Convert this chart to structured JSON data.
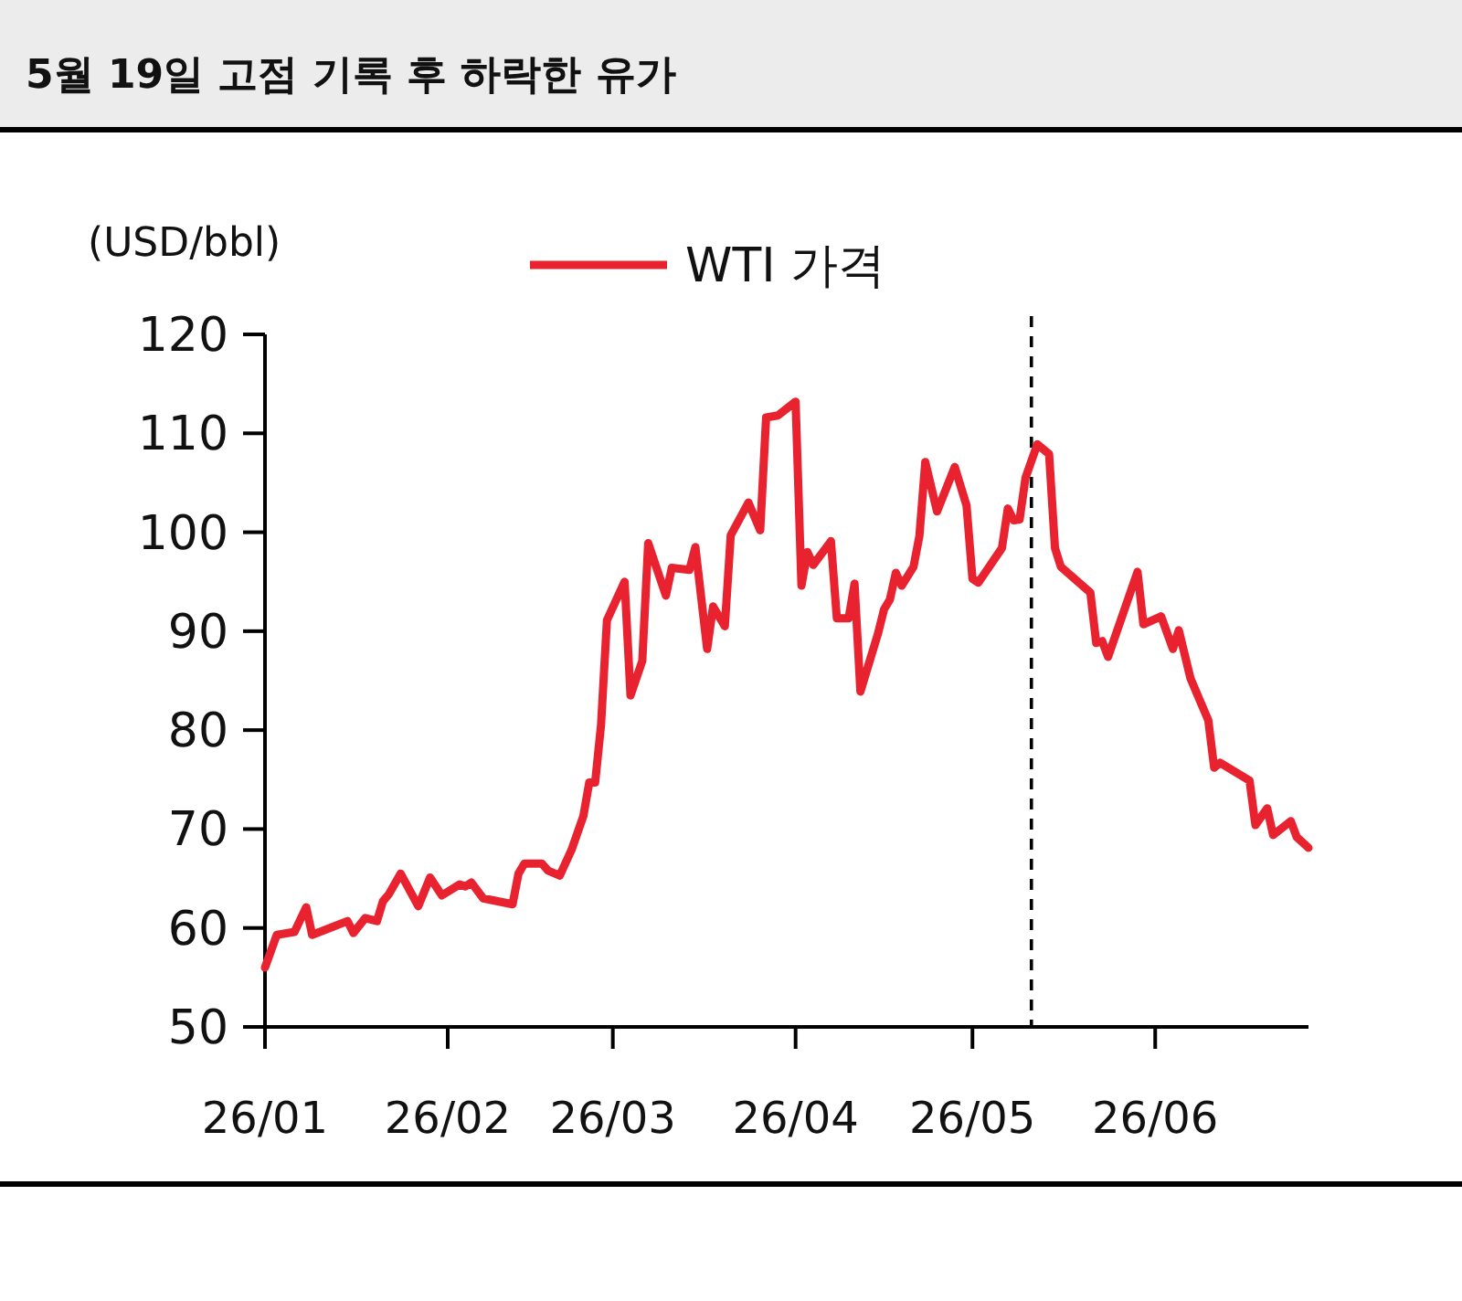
{
  "chart_data": {
    "type": "line",
    "title": "5월 19일 고점 기록 후 하락한 유가",
    "ylabel": "(USD/bbl)",
    "legend": "top",
    "grid": false,
    "marker": "none",
    "line_style": "solid",
    "xlim": [
      "--01-01",
      "--06-27"
    ],
    "xticks": [
      {
        "value": "--01-01",
        "label": "26/01"
      },
      {
        "value": "--02-01",
        "label": "26/02"
      },
      {
        "value": "--03-01",
        "label": "26/03"
      },
      {
        "value": "--04-01",
        "label": "26/04"
      },
      {
        "value": "--05-01",
        "label": "26/05"
      },
      {
        "value": "--06-01",
        "label": "26/06"
      }
    ],
    "ylim": [
      50,
      120
    ],
    "yticks": [
      50,
      60,
      70,
      80,
      90,
      100,
      110,
      120
    ],
    "ref_lines": [
      {
        "axis": "x",
        "value": "--05-11",
        "color": "#000000",
        "line_style": "dashed"
      }
    ],
    "x": [
      "--01-01",
      "--01-03",
      "--01-06",
      "--01-08",
      "--01-09",
      "--01-15",
      "--01-16",
      "--01-18",
      "--01-20",
      "--01-21",
      "--01-22",
      "--01-24",
      "--01-27",
      "--01-29",
      "--01-31",
      "--02-03",
      "--02-04",
      "--02-05",
      "--02-07",
      "--02-12",
      "--02-13",
      "--02-14",
      "--02-17",
      "--02-18",
      "--02-20",
      "--02-22",
      "--02-24",
      "--02-25",
      "--02-26",
      "--02-27",
      "--02-28",
      "--03-03",
      "--03-04",
      "--03-06",
      "--03-07",
      "--03-10",
      "--03-11",
      "--03-14",
      "--03-15",
      "--03-17",
      "--03-18",
      "--03-20",
      "--03-21",
      "--03-24",
      "--03-26",
      "--03-27",
      "--03-29",
      "--04-01",
      "--04-02",
      "--04-03",
      "--04-04",
      "--04-07",
      "--04-08",
      "--04-10",
      "--04-11",
      "--04-12",
      "--04-15",
      "--04-16",
      "--04-17",
      "--04-18",
      "--04-19",
      "--04-21",
      "--04-22",
      "--04-23",
      "--04-25",
      "--04-28",
      "--04-30",
      "--05-01",
      "--05-02",
      "--05-06",
      "--05-07",
      "--05-08",
      "--05-09",
      "--05-10",
      "--05-12",
      "--05-14",
      "--05-15",
      "--05-16",
      "--05-21",
      "--05-22",
      "--05-23",
      "--05-24",
      "--05-29",
      "--05-30",
      "--06-02",
      "--06-04",
      "--06-05",
      "--06-07",
      "--06-10",
      "--06-11",
      "--06-12",
      "--06-17",
      "--06-18",
      "--06-20",
      "--06-21",
      "--06-24",
      "--06-25",
      "--06-27"
    ],
    "series": [
      {
        "name": "WTI 가격",
        "color": "#e8232f",
        "values": [
          56.0,
          59.3,
          59.6,
          62.1,
          59.3,
          60.7,
          59.5,
          61.0,
          60.7,
          62.7,
          63.4,
          65.5,
          62.2,
          65.1,
          63.3,
          64.4,
          64.2,
          64.6,
          63.0,
          62.4,
          65.5,
          66.5,
          66.5,
          65.8,
          65.3,
          67.9,
          71.3,
          74.7,
          74.7,
          80.5,
          91.1,
          95.0,
          83.5,
          87.0,
          98.9,
          93.6,
          96.4,
          96.2,
          98.5,
          88.2,
          92.5,
          90.5,
          99.7,
          103.0,
          100.2,
          111.6,
          111.8,
          113.2,
          94.6,
          98.0,
          96.7,
          99.1,
          91.3,
          91.3,
          94.8,
          83.9,
          89.8,
          92.2,
          93.2,
          95.9,
          94.6,
          96.5,
          99.6,
          107.1,
          102.1,
          106.6,
          102.7,
          95.3,
          94.9,
          98.4,
          102.4,
          101.2,
          101.3,
          105.5,
          108.9,
          107.9,
          98.4,
          96.5,
          93.9,
          88.8,
          89.0,
          87.4,
          96.0,
          90.7,
          91.5,
          88.2,
          90.1,
          85.2,
          81.0,
          76.2,
          76.7,
          74.9,
          70.4,
          72.1,
          69.4,
          70.8,
          69.2,
          68.1
        ]
      }
    ]
  }
}
